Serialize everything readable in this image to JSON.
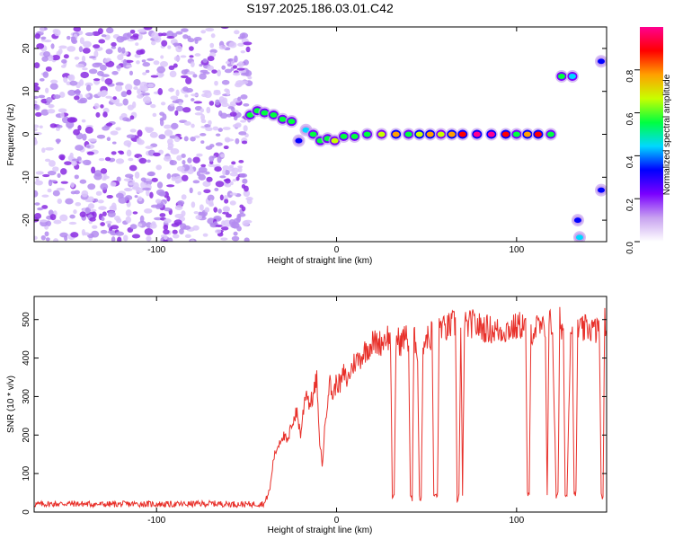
{
  "title": "S197.2025.186.03.01.C42",
  "chart_data": [
    {
      "type": "heatmap",
      "xlabel": "Height of straight line (km)",
      "ylabel": "Frequency (Hz)",
      "xlim": [
        -168,
        150
      ],
      "ylim": [
        -25,
        25
      ],
      "xticks": [
        -100,
        0,
        100
      ],
      "yticks": [
        -20,
        -10,
        0,
        10,
        20
      ],
      "colorbar": {
        "label": "Normalized spectral amplitude",
        "range": [
          0,
          1
        ],
        "ticks": [
          "0.0",
          "0.2",
          "0.4",
          "0.6",
          "0.8"
        ],
        "colors": [
          "#ffffff",
          "#c8a2f0",
          "#7a00ff",
          "#0000ff",
          "#00d8ff",
          "#00ff40",
          "#c8ff00",
          "#ffa000",
          "#ff0000",
          "#ff0090"
        ]
      },
      "noise_region": [
        -168,
        -48
      ],
      "ridge": [
        {
          "x": -48,
          "f": 4.5,
          "a": 0.5
        },
        {
          "x": -44,
          "f": 5.5,
          "a": 0.6
        },
        {
          "x": -40,
          "f": 5.0,
          "a": 0.55
        },
        {
          "x": -35,
          "f": 4.5,
          "a": 0.5
        },
        {
          "x": -30,
          "f": 3.5,
          "a": 0.55
        },
        {
          "x": -25,
          "f": 3.0,
          "a": 0.5
        },
        {
          "x": -21,
          "f": -1.5,
          "a": 0.35
        },
        {
          "x": -17,
          "f": 1.0,
          "a": 0.4
        },
        {
          "x": -13,
          "f": 0.0,
          "a": 0.5
        },
        {
          "x": -9,
          "f": -1.5,
          "a": 0.55
        },
        {
          "x": -5,
          "f": -1.0,
          "a": 0.6
        },
        {
          "x": -1,
          "f": -1.5,
          "a": 0.65
        },
        {
          "x": 4,
          "f": -0.5,
          "a": 0.6
        },
        {
          "x": 10,
          "f": -0.5,
          "a": 0.55
        },
        {
          "x": 17,
          "f": 0.0,
          "a": 0.6
        },
        {
          "x": 25,
          "f": 0.0,
          "a": 0.65
        },
        {
          "x": 33,
          "f": 0.0,
          "a": 0.75
        },
        {
          "x": 40,
          "f": 0.0,
          "a": 0.6
        },
        {
          "x": 46,
          "f": 0.0,
          "a": 0.7
        },
        {
          "x": 52,
          "f": 0.0,
          "a": 0.8
        },
        {
          "x": 58,
          "f": 0.0,
          "a": 0.65
        },
        {
          "x": 64,
          "f": 0.0,
          "a": 0.8
        },
        {
          "x": 70,
          "f": 0.0,
          "a": 0.9
        },
        {
          "x": 78,
          "f": 0.0,
          "a": 0.95
        },
        {
          "x": 86,
          "f": 0.0,
          "a": 0.95
        },
        {
          "x": 94,
          "f": 0.0,
          "a": 0.92
        },
        {
          "x": 100,
          "f": 0.0,
          "a": 0.6
        },
        {
          "x": 106,
          "f": 0.0,
          "a": 0.8
        },
        {
          "x": 112,
          "f": 0.0,
          "a": 0.85
        },
        {
          "x": 119,
          "f": 0.0,
          "a": 0.55
        },
        {
          "x": 125,
          "f": 13.5,
          "a": 0.5
        },
        {
          "x": 131,
          "f": 13.5,
          "a": 0.45
        },
        {
          "x": 134,
          "f": -20.0,
          "a": 0.35
        },
        {
          "x": 135,
          "f": -24.0,
          "a": 0.4
        },
        {
          "x": 147,
          "f": 17.0,
          "a": 0.35
        },
        {
          "x": 147,
          "f": -13.0,
          "a": 0.3
        }
      ]
    },
    {
      "type": "line",
      "xlabel": "Height of straight line (km)",
      "ylabel": "SNR (10 * v/v)",
      "xlim": [
        -168,
        150
      ],
      "ylim": [
        0,
        560
      ],
      "xticks": [
        -100,
        0,
        100
      ],
      "yticks": [
        0,
        100,
        200,
        300,
        400,
        500
      ],
      "color": "#e8302a",
      "series": [
        {
          "x": [
            -168,
            -150,
            -130,
            -110,
            -90,
            -70,
            -50,
            -40,
            -37,
            -35,
            -32,
            -30,
            -27,
            -25,
            -22,
            -20,
            -17,
            -15,
            -13,
            -11,
            -10,
            -8,
            -6,
            -4,
            -2,
            0,
            2,
            4,
            6,
            8,
            10,
            13,
            16,
            20,
            25,
            28,
            30,
            31,
            32,
            33,
            34,
            35,
            36,
            38,
            40,
            41,
            42,
            43,
            44,
            45,
            46,
            47,
            48,
            50,
            52,
            53,
            54,
            56,
            57,
            58,
            60,
            62,
            66,
            67,
            68,
            69,
            70,
            71,
            72,
            75,
            80,
            90,
            100,
            104,
            105,
            106,
            107,
            108,
            112,
            116,
            117,
            118,
            120,
            122,
            123,
            124,
            126,
            127,
            128,
            130,
            131,
            132,
            133,
            134,
            136,
            140,
            144,
            145,
            146,
            147,
            148,
            149,
            150
          ],
          "values": [
            20,
            22,
            20,
            21,
            20,
            22,
            20,
            22,
            60,
            140,
            180,
            200,
            180,
            230,
            260,
            200,
            320,
            280,
            300,
            350,
            220,
            120,
            250,
            340,
            300,
            340,
            330,
            360,
            340,
            370,
            390,
            400,
            420,
            440,
            440,
            460,
            440,
            30,
            40,
            440,
            450,
            440,
            440,
            460,
            440,
            45,
            30,
            450,
            440,
            420,
            40,
            30,
            430,
            460,
            440,
            480,
            45,
            40,
            470,
            490,
            470,
            480,
            490,
            30,
            45,
            480,
            40,
            490,
            480,
            490,
            480,
            470,
            480,
            490,
            480,
            50,
            40,
            470,
            480,
            470,
            40,
            500,
            470,
            40,
            45,
            500,
            470,
            40,
            50,
            480,
            460,
            40,
            50,
            480,
            470,
            480,
            470,
            480,
            470,
            45,
            40,
            500,
            470
          ]
        }
      ]
    }
  ]
}
